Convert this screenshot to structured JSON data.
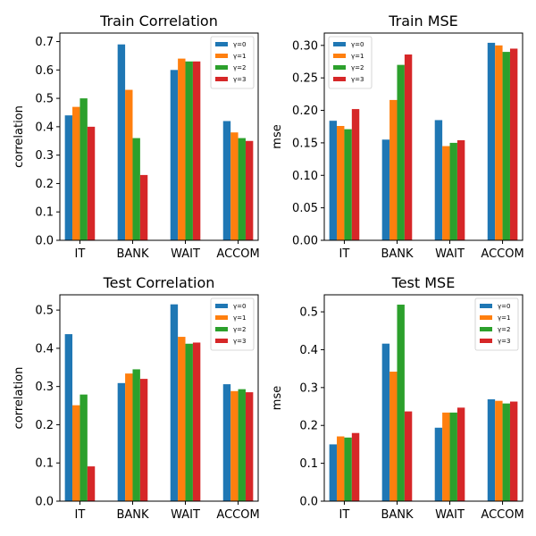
{
  "chart_data": [
    {
      "type": "bar",
      "title": "Train Correlation",
      "xlabel": "",
      "ylabel": "correlation",
      "categories": [
        "IT",
        "BANK",
        "WAIT",
        "ACCOM"
      ],
      "ylim": [
        0,
        0.73
      ],
      "yticks": [
        0.0,
        0.1,
        0.2,
        0.3,
        0.4,
        0.5,
        0.6,
        0.7
      ],
      "ytick_labels": [
        "0.0",
        "0.1",
        "0.2",
        "0.3",
        "0.4",
        "0.5",
        "0.6",
        "0.7"
      ],
      "legend_position": "top-right",
      "grid": false,
      "series": [
        {
          "name": "γ=0",
          "color": "#1f77b4",
          "values": [
            0.44,
            0.69,
            0.6,
            0.42
          ]
        },
        {
          "name": "γ=1",
          "color": "#ff7f0e",
          "values": [
            0.47,
            0.53,
            0.64,
            0.38
          ]
        },
        {
          "name": "γ=2",
          "color": "#2ca02c",
          "values": [
            0.5,
            0.36,
            0.63,
            0.36
          ]
        },
        {
          "name": "γ=3",
          "color": "#d62728",
          "values": [
            0.4,
            0.23,
            0.63,
            0.35
          ]
        }
      ]
    },
    {
      "type": "bar",
      "title": "Train MSE",
      "xlabel": "",
      "ylabel": "mse",
      "categories": [
        "IT",
        "BANK",
        "WAIT",
        "ACCOM"
      ],
      "ylim": [
        0,
        0.319
      ],
      "yticks": [
        0.0,
        0.05,
        0.1,
        0.15,
        0.2,
        0.25,
        0.3
      ],
      "ytick_labels": [
        "0.00",
        "0.05",
        "0.10",
        "0.15",
        "0.20",
        "0.25",
        "0.30"
      ],
      "legend_position": "top-left",
      "grid": false,
      "series": [
        {
          "name": "γ=0",
          "color": "#1f77b4",
          "values": [
            0.184,
            0.155,
            0.185,
            0.304
          ]
        },
        {
          "name": "γ=1",
          "color": "#ff7f0e",
          "values": [
            0.176,
            0.216,
            0.145,
            0.3
          ]
        },
        {
          "name": "γ=2",
          "color": "#2ca02c",
          "values": [
            0.171,
            0.27,
            0.15,
            0.29
          ]
        },
        {
          "name": "γ=3",
          "color": "#d62728",
          "values": [
            0.202,
            0.286,
            0.154,
            0.295
          ]
        }
      ]
    },
    {
      "type": "bar",
      "title": "Test Correlation",
      "xlabel": "",
      "ylabel": "correlation",
      "categories": [
        "IT",
        "BANK",
        "WAIT",
        "ACCOM"
      ],
      "ylim": [
        0,
        0.54
      ],
      "yticks": [
        0.0,
        0.1,
        0.2,
        0.3,
        0.4,
        0.5
      ],
      "ytick_labels": [
        "0.0",
        "0.1",
        "0.2",
        "0.3",
        "0.4",
        "0.5"
      ],
      "legend_position": "top-right",
      "grid": false,
      "series": [
        {
          "name": "γ=0",
          "color": "#1f77b4",
          "values": [
            0.437,
            0.309,
            0.515,
            0.306
          ]
        },
        {
          "name": "γ=1",
          "color": "#ff7f0e",
          "values": [
            0.251,
            0.334,
            0.43,
            0.288
          ]
        },
        {
          "name": "γ=2",
          "color": "#2ca02c",
          "values": [
            0.279,
            0.345,
            0.412,
            0.293
          ]
        },
        {
          "name": "γ=3",
          "color": "#d62728",
          "values": [
            0.091,
            0.32,
            0.415,
            0.285
          ]
        }
      ]
    },
    {
      "type": "bar",
      "title": "Test MSE",
      "xlabel": "",
      "ylabel": "mse",
      "categories": [
        "IT",
        "BANK",
        "WAIT",
        "ACCOM"
      ],
      "ylim": [
        0,
        0.545
      ],
      "yticks": [
        0.0,
        0.1,
        0.2,
        0.3,
        0.4,
        0.5
      ],
      "ytick_labels": [
        "0.0",
        "0.1",
        "0.2",
        "0.3",
        "0.4",
        "0.5"
      ],
      "legend_position": "top-right",
      "grid": false,
      "series": [
        {
          "name": "γ=0",
          "color": "#1f77b4",
          "values": [
            0.15,
            0.416,
            0.194,
            0.269
          ]
        },
        {
          "name": "γ=1",
          "color": "#ff7f0e",
          "values": [
            0.171,
            0.342,
            0.234,
            0.265
          ]
        },
        {
          "name": "γ=2",
          "color": "#2ca02c",
          "values": [
            0.168,
            0.519,
            0.234,
            0.258
          ]
        },
        {
          "name": "γ=3",
          "color": "#d62728",
          "values": [
            0.18,
            0.237,
            0.247,
            0.263
          ]
        }
      ]
    }
  ]
}
